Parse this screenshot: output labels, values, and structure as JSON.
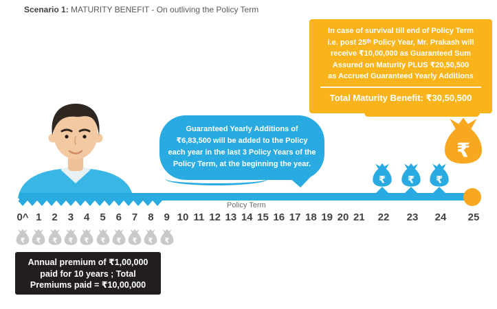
{
  "title": {
    "prefix": "Scenario 1:",
    "text": " MATURITY BENEFIT - On outliving the Policy Term"
  },
  "maturity_callout": {
    "lines": [
      "In case of survival till end of Policy Term",
      "i.e. post 25ᵗʰ Policy Year, Mr. Prakash will",
      "receive ₹10,00,000 as Guaranteed Sum",
      "Assured on Maturity PLUS ₹20,50,500",
      "as Accrued Guaranteed Yearly Additions"
    ],
    "total": "Total Maturity Benefit: ₹30,50,500"
  },
  "additions_callout": {
    "lines": [
      "Guaranteed Yearly Additions of",
      "₹6,83,500 will be added to the Policy",
      "each year in the last 3 Policy Years of the",
      "Policy Term, at the beginning the year."
    ]
  },
  "premium_callout": {
    "lines": [
      "Annual premium of ₹1,00,000",
      "paid for 10 years ; Total",
      "Premiums paid = ₹10,00,000"
    ]
  },
  "timeline": {
    "label": "Policy Term",
    "years": [
      "0^",
      "1",
      "2",
      "3",
      "4",
      "5",
      "6",
      "7",
      "8",
      "9",
      "10",
      "11",
      "12",
      "13",
      "14",
      "15",
      "16",
      "17",
      "18",
      "19",
      "20",
      "21",
      "22",
      "23",
      "24",
      "25"
    ],
    "premium_bag_years": [
      0,
      1,
      2,
      3,
      4,
      5,
      6,
      7,
      8,
      9
    ],
    "addition_bag_years": [
      22,
      23,
      24
    ],
    "maturity_bag_year": 25
  },
  "icons": {
    "rupee": "₹",
    "money_bag": "rupee-money-bag-icon",
    "end_dot": "timeline-end-dot"
  },
  "colors": {
    "blue": "#29ABE2",
    "yellow": "#F9B41B",
    "orange": "#F8A820",
    "grey_bag": "#C8C9CB",
    "black_box": "#221E1F",
    "text_dark": "#414042",
    "text_grey": "#6D6E71"
  }
}
